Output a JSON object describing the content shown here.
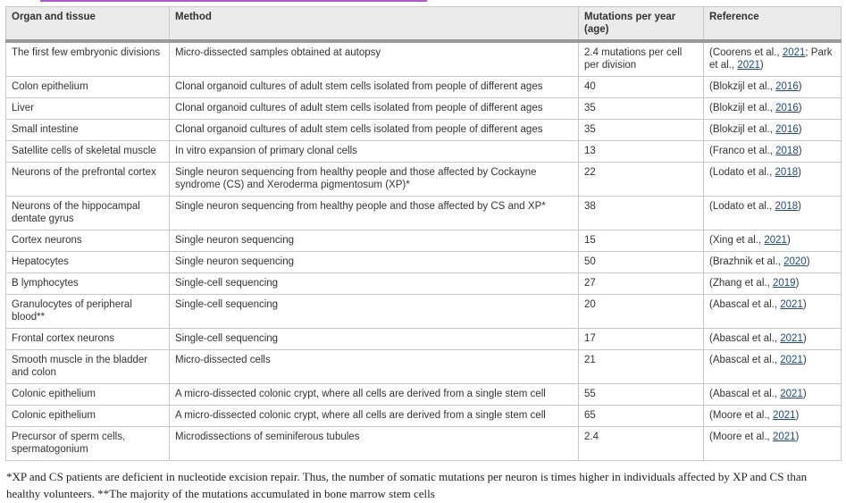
{
  "headers": [
    "Organ and tissue",
    "Method",
    "Mutations per year (age)",
    "Reference"
  ],
  "rows": [
    {
      "organ": "The first few embryonic divisions",
      "method": "Micro-dissected samples obtained at autopsy",
      "rate": "2.4 mutations per cell per division",
      "ref": [
        {
          "t": "(Coorens et al., "
        },
        {
          "t": "2021",
          "link": true
        },
        {
          "t": "; Park et al., "
        },
        {
          "t": "2021",
          "link": true
        },
        {
          "t": ")"
        }
      ],
      "two": true
    },
    {
      "organ": "Colon epithelium",
      "method": "Clonal organoid cultures of adult stem cells isolated from people of different ages",
      "rate": "40",
      "ref": [
        {
          "t": "(Blokzijl et al., "
        },
        {
          "t": "2016",
          "link": true
        },
        {
          "t": ")"
        }
      ]
    },
    {
      "organ": "Liver",
      "method": "Clonal organoid cultures of adult stem cells isolated from people of different ages",
      "rate": "35",
      "ref": [
        {
          "t": "(Blokzijl et al., "
        },
        {
          "t": "2016",
          "link": true
        },
        {
          "t": ")"
        }
      ]
    },
    {
      "organ": "Small intestine",
      "method": "Clonal organoid cultures of adult stem cells isolated from people of different ages",
      "rate": "35",
      "ref": [
        {
          "t": "(Blokzijl et al., "
        },
        {
          "t": "2016",
          "link": true
        },
        {
          "t": ")"
        }
      ]
    },
    {
      "organ": "Satellite cells of skeletal muscle",
      "method": "In vitro expansion of primary clonal cells",
      "rate": "13",
      "ref": [
        {
          "t": "(Franco et al., "
        },
        {
          "t": "2018",
          "link": true
        },
        {
          "t": ")"
        }
      ]
    },
    {
      "organ": "Neurons of the prefrontal cortex",
      "method": "Single neuron sequencing from healthy people and those affected by Cockayne syndrome (CS) and Xeroderma pigmentosum (XP)*",
      "rate": "22",
      "ref": [
        {
          "t": "(Lodato et al., "
        },
        {
          "t": "2018",
          "link": true
        },
        {
          "t": ")"
        }
      ],
      "two": true
    },
    {
      "organ": "Neurons of the hippocampal dentate gyrus",
      "method": "Single neuron sequencing from healthy people and those affected by CS and XP*",
      "rate": "38",
      "ref": [
        {
          "t": "(Lodato et al., "
        },
        {
          "t": "2018",
          "link": true
        },
        {
          "t": ")"
        }
      ],
      "two": true
    },
    {
      "organ": "Cortex neurons",
      "method": "Single neuron sequencing",
      "rate": "15",
      "ref": [
        {
          "t": "(Xing et al., "
        },
        {
          "t": "2021",
          "link": true
        },
        {
          "t": ")"
        }
      ]
    },
    {
      "organ": "Hepatocytes",
      "method": "Single neuron sequencing",
      "rate": "50",
      "ref": [
        {
          "t": "(Brazhnik et al., "
        },
        {
          "t": "2020",
          "link": true
        },
        {
          "t": ")"
        }
      ]
    },
    {
      "organ": "B lymphocytes",
      "method": "Single-cell sequencing",
      "rate": "27",
      "ref": [
        {
          "t": "(Zhang et al., "
        },
        {
          "t": "2019",
          "link": true
        },
        {
          "t": ")"
        }
      ]
    },
    {
      "organ": "Granulocytes of peripheral blood**",
      "method": "Single-cell sequencing",
      "rate": "20",
      "ref": [
        {
          "t": "(Abascal et al., "
        },
        {
          "t": "2021",
          "link": true
        },
        {
          "t": ")"
        }
      ],
      "two": true
    },
    {
      "organ": "Frontal cortex neurons",
      "method": "Single-cell sequencing",
      "rate": "17",
      "ref": [
        {
          "t": "(Abascal et al., "
        },
        {
          "t": "2021",
          "link": true
        },
        {
          "t": ")"
        }
      ]
    },
    {
      "organ": "Smooth muscle in the bladder and colon",
      "method": "Micro-dissected cells",
      "rate": "21",
      "ref": [
        {
          "t": "(Abascal et al., "
        },
        {
          "t": "2021",
          "link": true
        },
        {
          "t": ")"
        }
      ],
      "two": true
    },
    {
      "organ": "Colonic epithelium",
      "method": "A micro-dissected colonic crypt, where all cells are derived from a single stem cell",
      "rate": "55",
      "ref": [
        {
          "t": "(Abascal et al., "
        },
        {
          "t": "2021",
          "link": true
        },
        {
          "t": ")"
        }
      ]
    },
    {
      "organ": "Colonic epithelium",
      "method": "A micro-dissected colonic crypt, where all cells are derived from a single stem cell",
      "rate": "65",
      "ref": [
        {
          "t": "(Moore et al., "
        },
        {
          "t": "2021",
          "link": true
        },
        {
          "t": ")"
        }
      ]
    },
    {
      "organ": "Precursor of sperm cells, spermatogonium",
      "method": "Microdissections of seminiferous tubules",
      "rate": "2.4",
      "ref": [
        {
          "t": "(Moore et al., "
        },
        {
          "t": "2021",
          "link": true
        },
        {
          "t": ")"
        }
      ],
      "two": true
    }
  ],
  "footnote": "*XP and CS patients are deficient in nucleotide excision repair. Thus, the number of somatic mutations per neuron is times higher in individuals affected by XP and CS than healthy volunteers. **The majority of the mutations accumulated in bone marrow stem cells",
  "colors": {
    "link": "#1f4a7a",
    "header_bg": "#ebebeb",
    "top_bar": "#b05cc8"
  }
}
